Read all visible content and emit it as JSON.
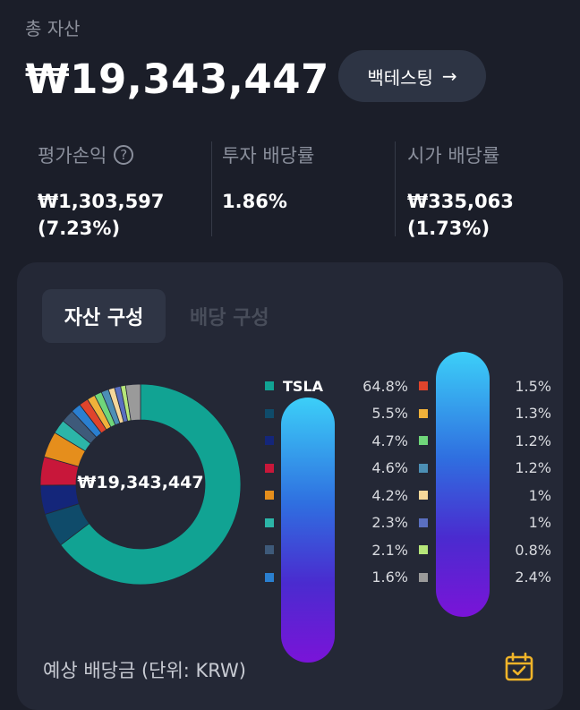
{
  "summary": {
    "total_label": "총 자산",
    "total_value": "₩19,343,447",
    "backtest_label": "백테스팅",
    "backtest_arrow": "→"
  },
  "metrics": [
    {
      "label": "평가손익",
      "value_line1": "₩1,303,597",
      "value_line2": "(7.23%)"
    },
    {
      "label": "투자 배당률",
      "value_line1": "1.86%",
      "value_line2": ""
    },
    {
      "label": "시가 배당률",
      "value_line1": "₩335,063",
      "value_line2": "(1.73%)"
    }
  ],
  "tabs": {
    "asset": "자산 구성",
    "dividend": "배당 구성"
  },
  "donut": {
    "center_value": "₩19,343,447"
  },
  "legend_left": [
    {
      "name": "TSLA",
      "pct": "64.8%",
      "value": 64.8,
      "color": "#11a393"
    },
    {
      "name": "",
      "pct": "5.5%",
      "value": 5.5,
      "color": "#0f4b6a"
    },
    {
      "name": "",
      "pct": "4.7%",
      "value": 4.7,
      "color": "#14267a"
    },
    {
      "name": "",
      "pct": "4.6%",
      "value": 4.6,
      "color": "#c8173a"
    },
    {
      "name": "",
      "pct": "4.2%",
      "value": 4.2,
      "color": "#e58e1c"
    },
    {
      "name": "",
      "pct": "2.3%",
      "value": 2.3,
      "color": "#2cb5a8"
    },
    {
      "name": "",
      "pct": "2.1%",
      "value": 2.1,
      "color": "#3e5a7a"
    },
    {
      "name": "",
      "pct": "1.6%",
      "value": 1.6,
      "color": "#2a7fd0"
    }
  ],
  "legend_right": [
    {
      "name": "",
      "pct": "1.5%",
      "value": 1.5,
      "color": "#e0442c"
    },
    {
      "name": "",
      "pct": "1.3%",
      "value": 1.3,
      "color": "#f0b13a"
    },
    {
      "name": "",
      "pct": "1.2%",
      "value": 1.2,
      "color": "#6fd67a"
    },
    {
      "name": "",
      "pct": "1.2%",
      "value": 1.2,
      "color": "#4c8fb5"
    },
    {
      "name": "",
      "pct": "1%",
      "value": 1.0,
      "color": "#f5d79a"
    },
    {
      "name": "",
      "pct": "1%",
      "value": 1.0,
      "color": "#5a6fc0"
    },
    {
      "name": "",
      "pct": "0.8%",
      "value": 0.8,
      "color": "#b6e67a"
    },
    {
      "name": "",
      "pct": "2.4%",
      "value": 2.4,
      "color": "#9a9a9a"
    }
  ],
  "bottom": {
    "label": "예상 배당금 (단위: KRW)"
  }
}
